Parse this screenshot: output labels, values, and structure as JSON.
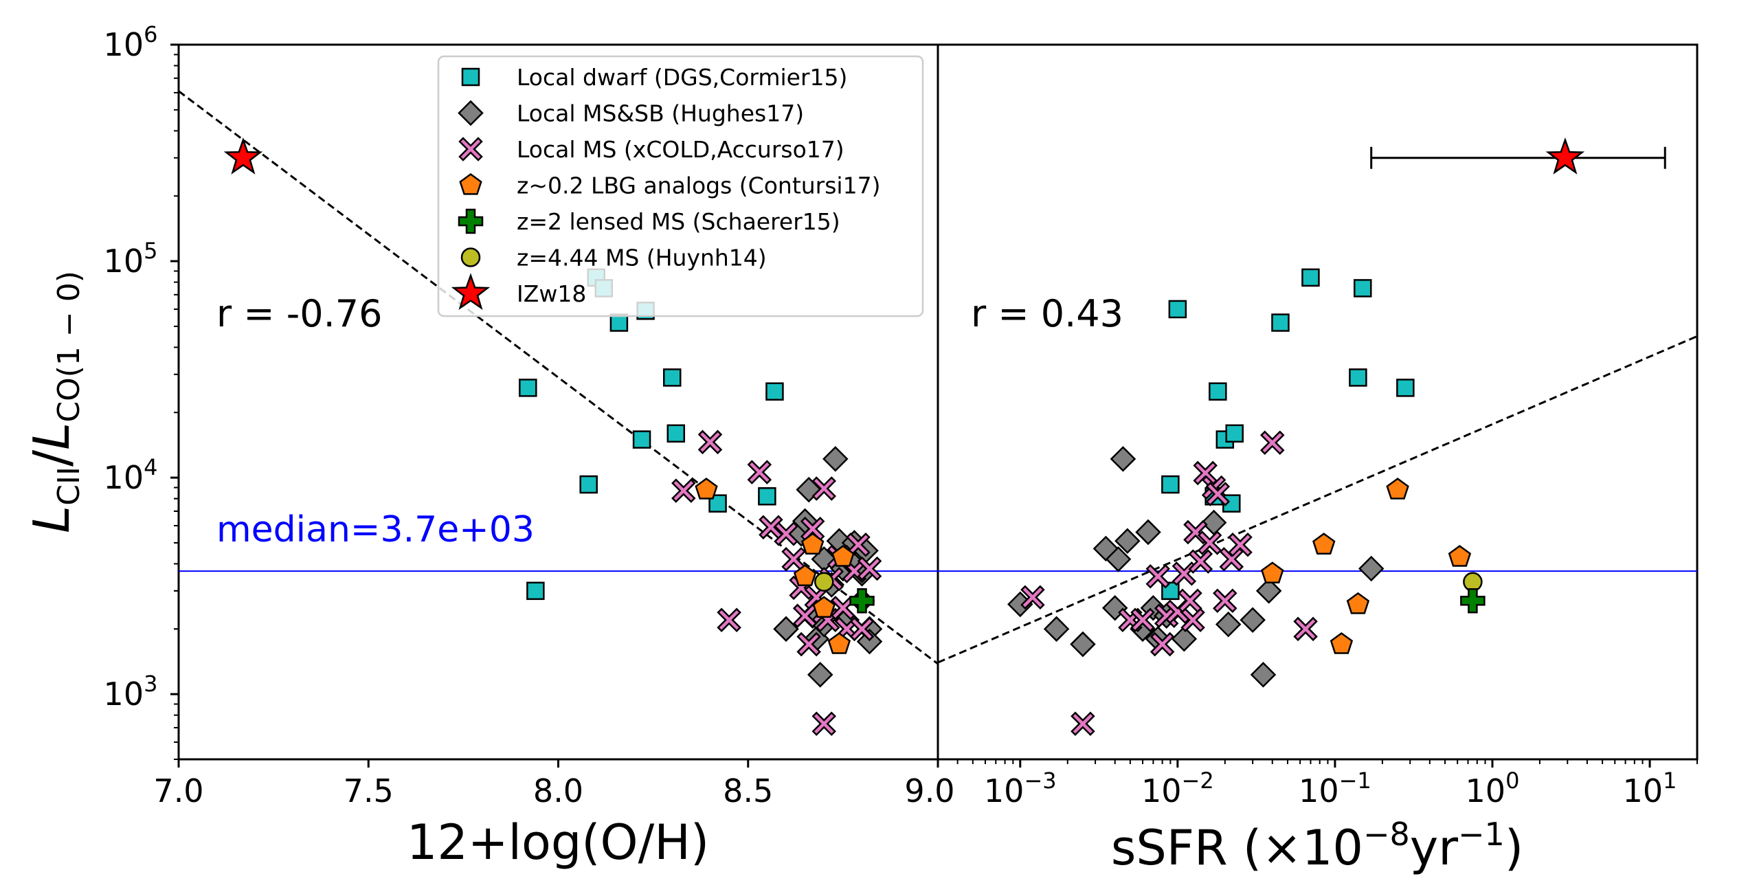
{
  "chart_data": {
    "type": "scatter",
    "ylabel": "L_CII/L_CO(1−0)",
    "ylim": [
      500,
      1000000
    ],
    "y_ticks": [
      "10^3",
      "10^4",
      "10^5",
      "10^6"
    ],
    "median": {
      "label": "median=3.7e+03",
      "value": 3700
    },
    "series_styles": [
      {
        "key": "dgs",
        "name": "Local dwarf (DGS,Cormier15)",
        "marker": "square",
        "color": "#17bebe"
      },
      {
        "key": "hughes",
        "name": "Local MS&SB (Hughes17)",
        "marker": "diamond",
        "color": "#808080"
      },
      {
        "key": "xcold",
        "name": "Local MS (xCOLD,Accurso17)",
        "marker": "x",
        "color": "#e377c2"
      },
      {
        "key": "lbg",
        "name": "z~0.2 LBG analogs (Contursi17)",
        "marker": "pentagon",
        "color": "#ff7f0e"
      },
      {
        "key": "schaerer",
        "name": "z=2 lensed MS (Schaerer15)",
        "marker": "plus",
        "color": "#008000"
      },
      {
        "key": "huynh",
        "name": "z=4.44 MS (Huynh14)",
        "marker": "circle",
        "color": "#bcbd22"
      },
      {
        "key": "izw18",
        "name": "IZw18",
        "marker": "star",
        "color": "#ff0000"
      }
    ],
    "panels": [
      {
        "id": "left",
        "xlabel": "12+log(O/H)",
        "xscale": "linear",
        "xlim": [
          7.0,
          9.0
        ],
        "x_ticks": [
          {
            "v": 7.0,
            "label": "7.0"
          },
          {
            "v": 7.5,
            "label": "7.5"
          },
          {
            "v": 8.0,
            "label": "8.0"
          },
          {
            "v": 8.5,
            "label": "8.5"
          },
          {
            "v": 9.0,
            "label": "9.0"
          }
        ],
        "correlation": "r = -0.76",
        "fit_line": [
          [
            7.0,
            610000
          ],
          [
            9.0,
            1380
          ]
        ],
        "series": {
          "dgs": [
            [
              7.92,
              26000
            ],
            [
              7.94,
              3000
            ],
            [
              8.08,
              9300
            ],
            [
              8.1,
              84000
            ],
            [
              8.12,
              75000
            ],
            [
              8.16,
              52000
            ],
            [
              8.22,
              15000
            ],
            [
              8.23,
              59000
            ],
            [
              8.3,
              29000
            ],
            [
              8.31,
              16000
            ],
            [
              8.42,
              7600
            ],
            [
              8.55,
              8200
            ],
            [
              8.57,
              25000
            ]
          ],
          "hughes": [
            [
              8.6,
              2000
            ],
            [
              8.64,
              5500
            ],
            [
              8.65,
              6300
            ],
            [
              8.66,
              8800
            ],
            [
              8.67,
              2300
            ],
            [
              8.68,
              1800
            ],
            [
              8.69,
              1230
            ],
            [
              8.7,
              2100
            ],
            [
              8.7,
              4200
            ],
            [
              8.72,
              3200
            ],
            [
              8.73,
              12200
            ],
            [
              8.74,
              5100
            ],
            [
              8.75,
              3800
            ],
            [
              8.76,
              2200
            ],
            [
              8.77,
              4100
            ],
            [
              8.78,
              5000
            ],
            [
              8.8,
              2700
            ],
            [
              8.8,
              3600
            ],
            [
              8.81,
              4600
            ],
            [
              8.82,
              2000
            ],
            [
              8.82,
              1750
            ]
          ],
          "xcold": [
            [
              8.33,
              8700
            ],
            [
              8.4,
              14600
            ],
            [
              8.45,
              2200
            ],
            [
              8.53,
              10600
            ],
            [
              8.56,
              5900
            ],
            [
              8.6,
              5500
            ],
            [
              8.62,
              4200
            ],
            [
              8.64,
              3100
            ],
            [
              8.65,
              2300
            ],
            [
              8.66,
              1700
            ],
            [
              8.67,
              5800
            ],
            [
              8.68,
              2800
            ],
            [
              8.7,
              8900
            ],
            [
              8.7,
              2400
            ],
            [
              8.71,
              2200
            ],
            [
              8.72,
              3400
            ],
            [
              8.74,
              4300
            ],
            [
              8.75,
              2500
            ],
            [
              8.76,
              2000
            ],
            [
              8.78,
              3700
            ],
            [
              8.79,
              4900
            ],
            [
              8.8,
              2000
            ],
            [
              8.82,
              3800
            ],
            [
              8.7,
              730
            ]
          ],
          "lbg": [
            [
              8.39,
              8800
            ],
            [
              8.65,
              3500
            ],
            [
              8.67,
              4900
            ],
            [
              8.7,
              2500
            ],
            [
              8.74,
              1700
            ],
            [
              8.75,
              4300
            ]
          ],
          "schaerer": [
            [
              8.8,
              2700
            ]
          ],
          "huynh": [
            [
              8.7,
              3300
            ]
          ],
          "izw18": [
            [
              7.17,
              300000
            ]
          ]
        }
      },
      {
        "id": "right",
        "xlabel": "sSFR (×10^−8yr^−1)",
        "xscale": "log",
        "xlim": [
          0.0003,
          20
        ],
        "x_ticks": [
          {
            "v": 0.001,
            "label": "10^-3"
          },
          {
            "v": 0.01,
            "label": "10^-2"
          },
          {
            "v": 0.1,
            "label": "10^-1"
          },
          {
            "v": 1,
            "label": "10^0"
          },
          {
            "v": 10,
            "label": "10^1"
          }
        ],
        "correlation": "r = 0.43",
        "fit_line": [
          [
            0.0003,
            1400
          ],
          [
            20,
            45000
          ]
        ],
        "izw18_xerr": [
          0.17,
          12.5
        ],
        "series": {
          "dgs": [
            [
              0.009,
              9300
            ],
            [
              0.009,
              3000
            ],
            [
              0.01,
              60000
            ],
            [
              0.017,
              8200
            ],
            [
              0.018,
              25000
            ],
            [
              0.02,
              15000
            ],
            [
              0.022,
              7600
            ],
            [
              0.023,
              16000
            ],
            [
              0.045,
              52000
            ],
            [
              0.07,
              84000
            ],
            [
              0.14,
              29000
            ],
            [
              0.15,
              75000
            ],
            [
              0.28,
              26000
            ]
          ],
          "hughes": [
            [
              0.001,
              2600
            ],
            [
              0.0017,
              2000
            ],
            [
              0.0025,
              1700
            ],
            [
              0.0035,
              4700
            ],
            [
              0.004,
              2500
            ],
            [
              0.0042,
              4200
            ],
            [
              0.0045,
              12200
            ],
            [
              0.0048,
              5100
            ],
            [
              0.006,
              2000
            ],
            [
              0.0065,
              5600
            ],
            [
              0.007,
              2500
            ],
            [
              0.0075,
              1800
            ],
            [
              0.0085,
              2300
            ],
            [
              0.011,
              1800
            ],
            [
              0.017,
              6200
            ],
            [
              0.021,
              2100
            ],
            [
              0.03,
              2200
            ],
            [
              0.035,
              1230
            ],
            [
              0.038,
              3000
            ],
            [
              0.17,
              3800
            ]
          ],
          "xcold": [
            [
              0.0012,
              2800
            ],
            [
              0.0025,
              730
            ],
            [
              0.005,
              2200
            ],
            [
              0.006,
              2200
            ],
            [
              0.0075,
              3500
            ],
            [
              0.008,
              1700
            ],
            [
              0.0085,
              2300
            ],
            [
              0.01,
              2400
            ],
            [
              0.011,
              3600
            ],
            [
              0.012,
              2700
            ],
            [
              0.0125,
              2200
            ],
            [
              0.013,
              5600
            ],
            [
              0.014,
              4100
            ],
            [
              0.015,
              10500
            ],
            [
              0.016,
              5000
            ],
            [
              0.017,
              9000
            ],
            [
              0.018,
              8400
            ],
            [
              0.02,
              2700
            ],
            [
              0.022,
              4200
            ],
            [
              0.025,
              4900
            ],
            [
              0.04,
              14500
            ],
            [
              0.065,
              2000
            ]
          ],
          "lbg": [
            [
              0.04,
              3600
            ],
            [
              0.085,
              4900
            ],
            [
              0.11,
              1700
            ],
            [
              0.14,
              2600
            ],
            [
              0.25,
              8800
            ],
            [
              0.62,
              4300
            ]
          ],
          "schaerer": [
            [
              0.75,
              2700
            ]
          ],
          "huynh": [
            [
              0.75,
              3300
            ]
          ],
          "izw18": [
            [
              2.9,
              300000
            ]
          ]
        }
      }
    ]
  }
}
